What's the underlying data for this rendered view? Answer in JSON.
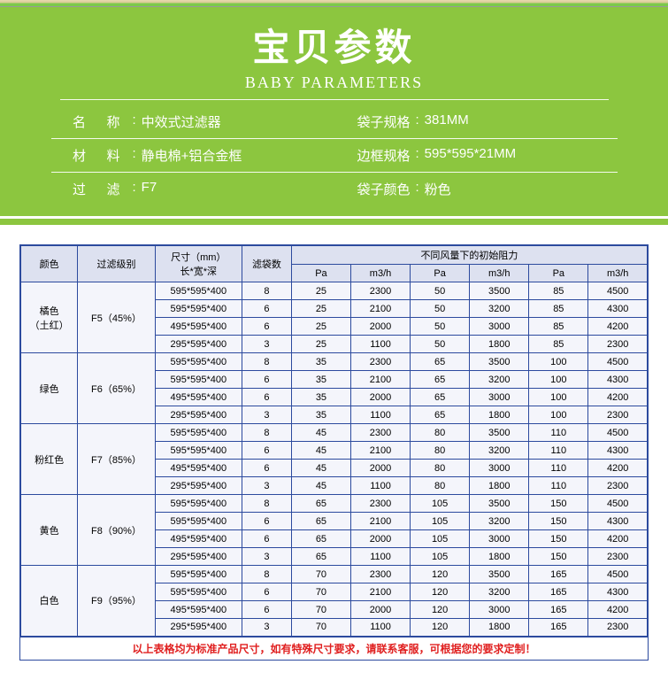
{
  "header": {
    "title_cn": "宝贝参数",
    "title_en": "BABY PARAMETERS",
    "info": [
      {
        "label": "名 称",
        "value": "中效式过滤器"
      },
      {
        "label": "袋子规格",
        "value": "381MM"
      },
      {
        "label": "材 料",
        "value": "静电棉+铝合金框"
      },
      {
        "label": "边框规格",
        "value": "595*595*21MM"
      },
      {
        "label": "过 滤",
        "value": "F7"
      },
      {
        "label": "袋子颜色",
        "value": "粉色"
      }
    ]
  },
  "table": {
    "columns": {
      "color": "颜色",
      "grade": "过滤级别",
      "size_main": "尺寸（mm）",
      "size_sub": "长*宽*深",
      "bags": "滤袋数",
      "resist_header": "不同风量下的初始阻力",
      "units": [
        "Pa",
        "m3/h",
        "Pa",
        "m3/h",
        "Pa",
        "m3/h"
      ]
    },
    "groups": [
      {
        "color": "橘色（土红）",
        "grade": "F5（45%）",
        "rows": [
          {
            "size": "595*595*400",
            "bags": 8,
            "v": [
              25,
              2300,
              50,
              3500,
              85,
              4500
            ]
          },
          {
            "size": "595*595*400",
            "bags": 6,
            "v": [
              25,
              2100,
              50,
              3200,
              85,
              4300
            ]
          },
          {
            "size": "495*595*400",
            "bags": 6,
            "v": [
              25,
              2000,
              50,
              3000,
              85,
              4200
            ]
          },
          {
            "size": "295*595*400",
            "bags": 3,
            "v": [
              25,
              1100,
              50,
              1800,
              85,
              2300
            ]
          }
        ]
      },
      {
        "color": "绿色",
        "grade": "F6（65%）",
        "rows": [
          {
            "size": "595*595*400",
            "bags": 8,
            "v": [
              35,
              2300,
              65,
              3500,
              100,
              4500
            ]
          },
          {
            "size": "595*595*400",
            "bags": 6,
            "v": [
              35,
              2100,
              65,
              3200,
              100,
              4300
            ]
          },
          {
            "size": "495*595*400",
            "bags": 6,
            "v": [
              35,
              2000,
              65,
              3000,
              100,
              4200
            ]
          },
          {
            "size": "295*595*400",
            "bags": 3,
            "v": [
              35,
              1100,
              65,
              1800,
              100,
              2300
            ]
          }
        ]
      },
      {
        "color": "粉红色",
        "grade": "F7（85%）",
        "rows": [
          {
            "size": "595*595*400",
            "bags": 8,
            "v": [
              45,
              2300,
              80,
              3500,
              110,
              4500
            ]
          },
          {
            "size": "595*595*400",
            "bags": 6,
            "v": [
              45,
              2100,
              80,
              3200,
              110,
              4300
            ]
          },
          {
            "size": "495*595*400",
            "bags": 6,
            "v": [
              45,
              2000,
              80,
              3000,
              110,
              4200
            ]
          },
          {
            "size": "295*595*400",
            "bags": 3,
            "v": [
              45,
              1100,
              80,
              1800,
              110,
              2300
            ]
          }
        ]
      },
      {
        "color": "黄色",
        "grade": "F8（90%）",
        "rows": [
          {
            "size": "595*595*400",
            "bags": 8,
            "v": [
              65,
              2300,
              105,
              3500,
              150,
              4500
            ]
          },
          {
            "size": "595*595*400",
            "bags": 6,
            "v": [
              65,
              2100,
              105,
              3200,
              150,
              4300
            ]
          },
          {
            "size": "495*595*400",
            "bags": 6,
            "v": [
              65,
              2000,
              105,
              3000,
              150,
              4200
            ]
          },
          {
            "size": "295*595*400",
            "bags": 3,
            "v": [
              65,
              1100,
              105,
              1800,
              150,
              2300
            ]
          }
        ]
      },
      {
        "color": "白色",
        "grade": "F9（95%）",
        "rows": [
          {
            "size": "595*595*400",
            "bags": 8,
            "v": [
              70,
              2300,
              120,
              3500,
              165,
              4500
            ]
          },
          {
            "size": "595*595*400",
            "bags": 6,
            "v": [
              70,
              2100,
              120,
              3200,
              165,
              4300
            ]
          },
          {
            "size": "495*595*400",
            "bags": 6,
            "v": [
              70,
              2000,
              120,
              3000,
              165,
              4200
            ]
          },
          {
            "size": "295*595*400",
            "bags": 3,
            "v": [
              70,
              1100,
              120,
              1800,
              165,
              2300
            ]
          }
        ]
      }
    ],
    "footnote": "以上表格均为标准产品尺寸，如有特殊尺寸要求，请联系客服，可根据您的要求定制！"
  },
  "colors": {
    "header_bg": "#8cc63f",
    "table_border": "#2c4a9e",
    "th_bg": "#dde1f0",
    "td_bg": "#f4f5fb",
    "footnote_color": "#e02020"
  }
}
